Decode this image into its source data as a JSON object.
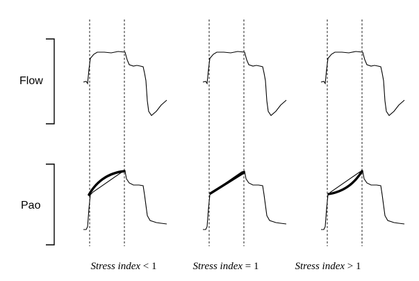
{
  "rows": {
    "flow_label": "Flow",
    "pao_label": "Pao"
  },
  "panels": [
    {
      "caption_italic": "Stress index",
      "caption_rest": " < 1",
      "curvature": "downward-concave"
    },
    {
      "caption_italic": "Stress index",
      "caption_rest": " = 1",
      "curvature": "linear"
    },
    {
      "caption_italic": "Stress index",
      "caption_rest": " > 1",
      "curvature": "upward-concave"
    }
  ],
  "colors": {
    "trace": "#000000",
    "highlight": "#000000",
    "background": "#ffffff"
  }
}
